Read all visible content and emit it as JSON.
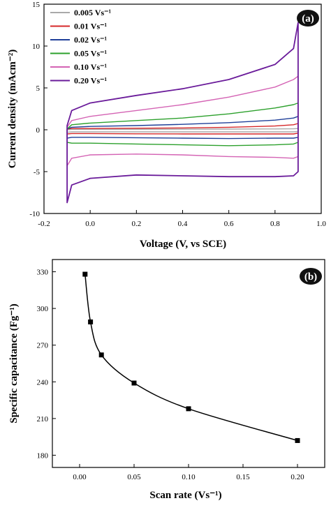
{
  "chart_data": [
    {
      "type": "line",
      "panel_label": "(a)",
      "xlabel": "Voltage (V, vs SCE)",
      "ylabel": "Current density (mAcm⁻²)",
      "xlim": [
        -0.2,
        1.0
      ],
      "ylim": [
        -10,
        15
      ],
      "xticks": [
        "-0.2",
        "0.0",
        "0.2",
        "0.4",
        "0.6",
        "0.8",
        "1.0"
      ],
      "yticks": [
        "-10",
        "-5",
        "0",
        "5",
        "10",
        "15"
      ],
      "legend_position": "top-left",
      "grid": false,
      "series": [
        {
          "name": "0.005 Vs⁻¹",
          "color": "#a9a9a9",
          "voltage": [
            -0.1,
            -0.1,
            -0.08,
            0.0,
            0.2,
            0.4,
            0.6,
            0.8,
            0.88,
            0.9,
            0.9,
            0.9,
            0.88,
            0.8,
            0.6,
            0.4,
            0.2,
            0.0,
            -0.08,
            -0.1
          ],
          "current": [
            -0.3,
            0.0,
            0.05,
            0.05,
            0.06,
            0.07,
            0.08,
            0.1,
            0.12,
            0.15,
            0.0,
            -0.2,
            -0.25,
            -0.25,
            -0.25,
            -0.25,
            -0.25,
            -0.25,
            -0.25,
            -0.3
          ]
        },
        {
          "name": "0.01 Vs⁻¹",
          "color": "#d62728",
          "voltage": [
            -0.1,
            -0.1,
            -0.08,
            0.0,
            0.2,
            0.4,
            0.6,
            0.8,
            0.88,
            0.9,
            0.9,
            0.9,
            0.88,
            0.8,
            0.6,
            0.4,
            0.2,
            0.0,
            -0.08,
            -0.1
          ],
          "current": [
            -0.5,
            0.1,
            0.15,
            0.15,
            0.18,
            0.22,
            0.3,
            0.45,
            0.6,
            0.75,
            0.2,
            -0.4,
            -0.5,
            -0.5,
            -0.5,
            -0.5,
            -0.48,
            -0.45,
            -0.45,
            -0.5
          ]
        },
        {
          "name": "0.02 Vs⁻¹",
          "color": "#1f3f99",
          "voltage": [
            -0.1,
            -0.1,
            -0.08,
            0.0,
            0.2,
            0.4,
            0.6,
            0.8,
            0.88,
            0.9,
            0.9,
            0.9,
            0.88,
            0.8,
            0.6,
            0.4,
            0.2,
            0.0,
            -0.08,
            -0.1
          ],
          "current": [
            -1.0,
            0.1,
            0.3,
            0.4,
            0.5,
            0.65,
            0.85,
            1.15,
            1.4,
            1.6,
            0.2,
            -0.9,
            -1.0,
            -1.0,
            -1.05,
            -1.0,
            -0.95,
            -0.9,
            -0.9,
            -1.0
          ]
        },
        {
          "name": "0.05 Vs⁻¹",
          "color": "#2ca02c",
          "voltage": [
            -0.1,
            -0.1,
            -0.08,
            0.0,
            0.2,
            0.4,
            0.6,
            0.8,
            0.88,
            0.9,
            0.9,
            0.9,
            0.88,
            0.8,
            0.6,
            0.4,
            0.2,
            0.0,
            -0.08,
            -0.1
          ],
          "current": [
            -1.5,
            0.1,
            0.6,
            0.8,
            1.1,
            1.4,
            1.9,
            2.6,
            3.0,
            3.2,
            0.3,
            -1.5,
            -1.7,
            -1.8,
            -1.9,
            -1.8,
            -1.7,
            -1.6,
            -1.6,
            -1.5
          ]
        },
        {
          "name": "0.10 Vs⁻¹",
          "color": "#d463b4",
          "voltage": [
            -0.1,
            -0.1,
            -0.08,
            0.0,
            0.2,
            0.4,
            0.6,
            0.8,
            0.88,
            0.9,
            0.9,
            0.9,
            0.88,
            0.8,
            0.6,
            0.4,
            0.2,
            0.0,
            -0.08,
            -0.1
          ],
          "current": [
            -4.3,
            0.3,
            1.1,
            1.6,
            2.3,
            3.0,
            3.9,
            5.1,
            6.0,
            6.4,
            0.5,
            -3.2,
            -3.4,
            -3.3,
            -3.2,
            -3.0,
            -2.9,
            -3.0,
            -3.4,
            -4.3
          ]
        },
        {
          "name": "0.20 Vs⁻¹",
          "color": "#6a1b9a",
          "voltage": [
            -0.1,
            -0.1,
            -0.08,
            0.0,
            0.2,
            0.4,
            0.6,
            0.8,
            0.88,
            0.9,
            0.9,
            0.9,
            0.88,
            0.8,
            0.6,
            0.4,
            0.2,
            0.0,
            -0.08,
            -0.1
          ],
          "current": [
            -8.7,
            0.5,
            2.3,
            3.2,
            4.1,
            4.9,
            6.0,
            7.8,
            9.7,
            12.8,
            1.0,
            -5.0,
            -5.5,
            -5.6,
            -5.6,
            -5.5,
            -5.4,
            -5.8,
            -6.6,
            -8.7
          ]
        }
      ]
    },
    {
      "type": "line",
      "panel_label": "(b)",
      "xlabel": "Scan rate (Vs⁻¹)",
      "ylabel": "Specific capacitance (Fg⁻¹)",
      "xlim": [
        -0.025,
        0.225
      ],
      "ylim": [
        170,
        340
      ],
      "xticks": [
        "0.00",
        "0.05",
        "0.10",
        "0.15",
        "0.20"
      ],
      "yticks": [
        "180",
        "210",
        "240",
        "270",
        "300",
        "330"
      ],
      "grid": false,
      "marker": "square",
      "color": "#000000",
      "x": [
        0.005,
        0.01,
        0.02,
        0.05,
        0.1,
        0.2
      ],
      "y": [
        328,
        289,
        262,
        239,
        218,
        192
      ]
    }
  ]
}
